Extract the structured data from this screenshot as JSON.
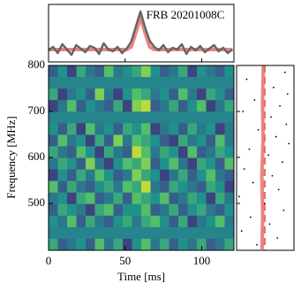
{
  "chart_data": [
    {
      "type": "line",
      "title": "FRB 20201008C",
      "x": [
        0,
        3,
        6,
        9,
        12,
        15,
        18,
        21,
        24,
        27,
        30,
        33,
        36,
        39,
        42,
        45,
        48,
        51,
        54,
        57,
        60,
        63,
        66,
        69,
        72,
        75,
        78,
        81,
        84,
        87,
        90,
        93,
        96,
        99,
        102,
        105,
        108,
        111,
        114,
        117,
        120
      ],
      "series": [
        {
          "color": "#666666",
          "values": [
            0.8,
            1.2,
            0.5,
            1.5,
            0.9,
            0.3,
            1.4,
            1.0,
            0.6,
            1.3,
            1.1,
            0.4,
            1.6,
            0.9,
            0.7,
            1.2,
            0.5,
            1.0,
            1.8,
            3.5,
            5.2,
            3.4,
            1.9,
            1.2,
            0.8,
            1.4,
            0.6,
            1.1,
            0.9,
            1.5,
            0.4,
            1.2,
            0.8,
            1.3,
            0.6,
            1.0,
            1.4,
            0.7,
            1.1,
            0.5,
            0.9
          ]
        },
        {
          "color": "#e8706c",
          "values": [
            0.9,
            0.9,
            0.9,
            0.9,
            0.9,
            0.9,
            0.9,
            0.9,
            0.9,
            0.9,
            0.9,
            0.9,
            0.9,
            0.9,
            0.9,
            0.9,
            0.9,
            0.9,
            1.2,
            2.8,
            4.5,
            2.8,
            1.2,
            0.9,
            0.9,
            0.9,
            0.9,
            0.9,
            0.9,
            0.9,
            0.9,
            0.9,
            0.9,
            0.9,
            0.9,
            0.9,
            0.9,
            0.9,
            0.9,
            0.9,
            0.9
          ]
        }
      ],
      "xlim": [
        0,
        121
      ],
      "ylim": [
        -0.5,
        6
      ]
    },
    {
      "type": "heatmap",
      "xlabel": "Time [ms]",
      "ylabel": "Frequency [MHz]",
      "xlim": [
        0,
        121
      ],
      "ylim": [
        398,
        800
      ],
      "xticks": [
        0,
        50,
        100
      ],
      "yticks": [
        500,
        600,
        700,
        800
      ],
      "colormap": "viridis",
      "zlim": [
        0,
        1
      ],
      "values": [
        [
          0.3,
          0.5,
          0.2,
          0.6,
          0.4,
          0.3,
          0.7,
          0.4,
          0.5,
          0.6,
          0.8,
          0.5,
          0.3,
          0.4,
          0.6,
          0.2,
          0.5,
          0.4,
          0.3,
          0.5
        ],
        [
          0.45,
          0.45,
          0.45,
          0.45,
          0.45,
          0.45,
          0.45,
          0.45,
          0.45,
          0.45,
          0.45,
          0.45,
          0.45,
          0.45,
          0.45,
          0.45,
          0.45,
          0.45,
          0.45,
          0.45
        ],
        [
          0.6,
          0.2,
          0.4,
          0.5,
          0.3,
          0.8,
          0.4,
          0.2,
          0.5,
          0.7,
          0.6,
          0.4,
          0.5,
          0.3,
          0.7,
          0.4,
          0.2,
          0.6,
          0.5,
          0.3
        ],
        [
          0.2,
          0.4,
          0.7,
          0.3,
          0.5,
          0.4,
          0.3,
          0.6,
          0.2,
          0.8,
          0.9,
          0.3,
          0.4,
          0.6,
          0.3,
          0.5,
          0.7,
          0.2,
          0.4,
          0.6
        ],
        [
          0.45,
          0.45,
          0.45,
          0.45,
          0.45,
          0.45,
          0.45,
          0.45,
          0.45,
          0.45,
          0.45,
          0.45,
          0.45,
          0.45,
          0.45,
          0.45,
          0.45,
          0.45,
          0.45,
          0.45
        ],
        [
          0.5,
          0.3,
          0.6,
          0.2,
          0.7,
          0.4,
          0.5,
          0.3,
          0.6,
          0.5,
          0.7,
          0.2,
          0.4,
          0.5,
          0.3,
          0.6,
          0.4,
          0.5,
          0.2,
          0.4
        ],
        [
          0.3,
          0.7,
          0.4,
          0.5,
          0.2,
          0.6,
          0.3,
          0.8,
          0.4,
          0.7,
          0.6,
          0.5,
          0.3,
          0.2,
          0.6,
          0.4,
          0.5,
          0.3,
          0.7,
          0.4
        ],
        [
          0.6,
          0.4,
          0.3,
          0.7,
          0.5,
          0.2,
          0.6,
          0.4,
          0.3,
          0.9,
          0.7,
          0.4,
          0.6,
          0.5,
          0.2,
          0.7,
          0.3,
          0.4,
          0.6,
          0.5
        ],
        [
          0.4,
          0.6,
          0.5,
          0.3,
          0.8,
          0.4,
          0.2,
          0.5,
          0.7,
          0.6,
          0.8,
          0.3,
          0.5,
          0.7,
          0.4,
          0.2,
          0.6,
          0.5,
          0.3,
          0.7
        ],
        [
          0.2,
          0.5,
          0.3,
          0.6,
          0.4,
          0.7,
          0.5,
          0.3,
          0.4,
          0.8,
          0.6,
          0.5,
          0.2,
          0.4,
          0.6,
          0.3,
          0.5,
          0.7,
          0.4,
          0.3
        ],
        [
          0.7,
          0.3,
          0.6,
          0.4,
          0.3,
          0.5,
          0.6,
          0.4,
          0.7,
          0.6,
          0.9,
          0.4,
          0.3,
          0.6,
          0.5,
          0.4,
          0.3,
          0.6,
          0.5,
          0.2
        ],
        [
          0.4,
          0.5,
          0.2,
          0.6,
          0.7,
          0.3,
          0.4,
          0.6,
          0.3,
          0.7,
          0.6,
          0.5,
          0.7,
          0.3,
          0.4,
          0.6,
          0.5,
          0.2,
          0.6,
          0.4
        ],
        [
          0.3,
          0.6,
          0.5,
          0.4,
          0.2,
          0.6,
          0.7,
          0.3,
          0.5,
          0.5,
          0.7,
          0.3,
          0.4,
          0.6,
          0.3,
          0.5,
          0.6,
          0.4,
          0.3,
          0.5
        ],
        [
          0.5,
          0.4,
          0.7,
          0.3,
          0.6,
          0.4,
          0.3,
          0.5,
          0.6,
          0.4,
          0.6,
          0.7,
          0.5,
          0.3,
          0.6,
          0.2,
          0.4,
          0.5,
          0.7,
          0.4
        ],
        [
          0.45,
          0.45,
          0.45,
          0.45,
          0.45,
          0.45,
          0.45,
          0.45,
          0.45,
          0.45,
          0.45,
          0.45,
          0.45,
          0.45,
          0.45,
          0.45,
          0.45,
          0.45,
          0.45,
          0.45
        ],
        [
          0.6,
          0.3,
          0.4,
          0.5,
          0.3,
          0.7,
          0.4,
          0.6,
          0.2,
          0.5,
          0.7,
          0.4,
          0.6,
          0.3,
          0.5,
          0.4,
          0.6,
          0.3,
          0.4,
          0.6
        ]
      ]
    },
    {
      "type": "scatter",
      "color": "#000000",
      "xlim": [
        -2,
        2.5
      ],
      "ylim": [
        398,
        800
      ],
      "x": [
        1.8,
        -1.2,
        0.9,
        2.0,
        -0.6,
        1.4,
        -1.5,
        0.7,
        1.9,
        -0.3,
        1.1,
        2.1,
        -1.0,
        0.5,
        1.6,
        -1.4,
        0.8,
        -0.7,
        1.3,
        -1.8,
        0.2,
        1.7,
        -0.9,
        0.6,
        -1.6,
        1.2,
        -0.4
      ],
      "y": [
        785,
        770,
        752,
        738,
        725,
        712,
        700,
        688,
        672,
        660,
        645,
        630,
        618,
        605,
        590,
        575,
        560,
        545,
        530,
        515,
        500,
        485,
        470,
        455,
        440,
        425,
        410
      ],
      "fit": {
        "color": "#e8706c",
        "x": [
          0.0,
          0.05,
          -0.02,
          0.08,
          0.04,
          0.1
        ],
        "y": [
          400,
          480,
          560,
          640,
          720,
          800
        ]
      },
      "vline": {
        "color": "#e8706c",
        "x": 0.2
      }
    }
  ]
}
